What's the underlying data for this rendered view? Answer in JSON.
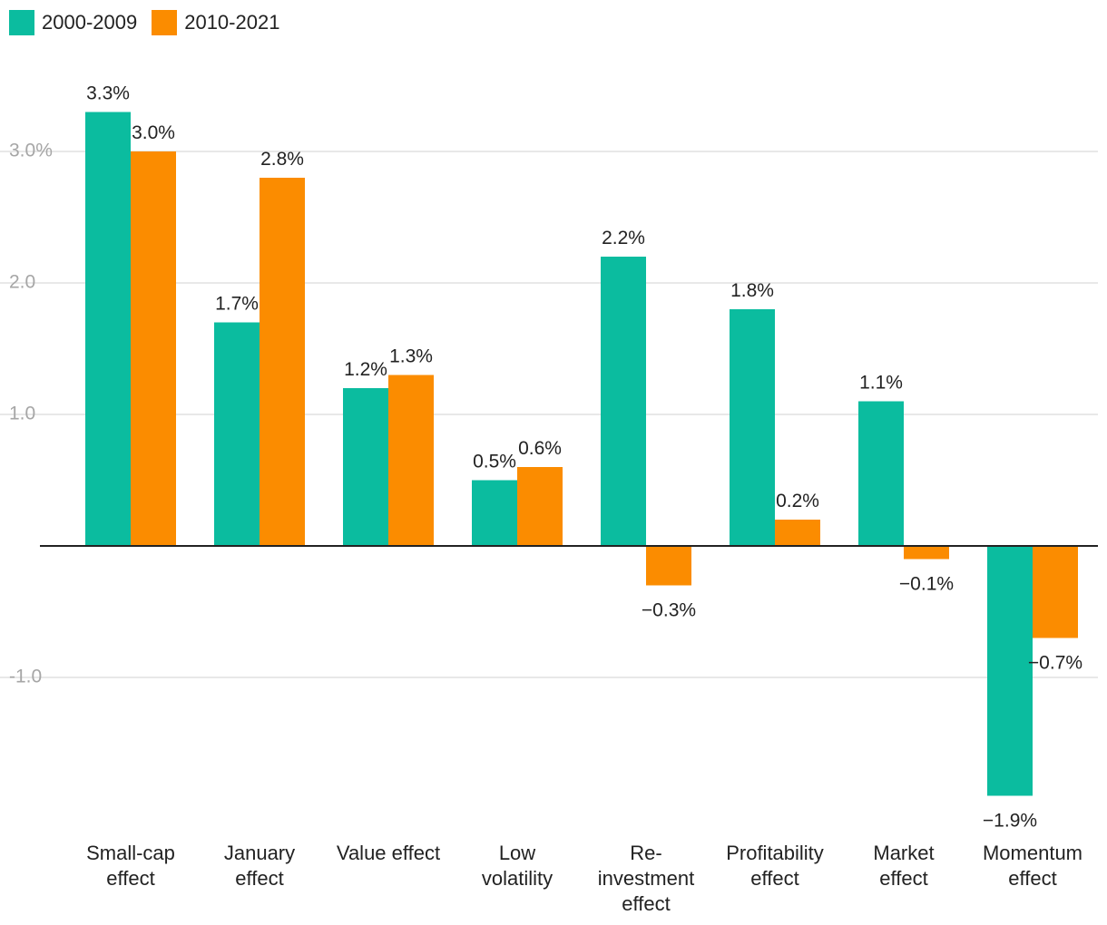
{
  "chart_data": {
    "type": "bar",
    "categories": [
      [
        "Small-cap",
        "effect"
      ],
      [
        "January",
        "effect"
      ],
      [
        "Value effect"
      ],
      [
        "Low",
        "volatility"
      ],
      [
        "Re-",
        "investment",
        "effect"
      ],
      [
        "Profitability",
        "effect"
      ],
      [
        "Market",
        "effect"
      ],
      [
        "Momentum",
        "effect"
      ]
    ],
    "series": [
      {
        "name": "2000-2009",
        "color": "#0bbc9f",
        "values": [
          3.3,
          1.7,
          1.2,
          0.5,
          2.2,
          1.8,
          1.1,
          -1.9
        ],
        "labels": [
          "3.3%",
          "1.7%",
          "1.2%",
          "0.5%",
          "2.2%",
          "1.8%",
          "1.1%",
          "−1.9%"
        ]
      },
      {
        "name": "2010-2021",
        "color": "#fb8c00",
        "values": [
          3.0,
          2.8,
          1.3,
          0.6,
          -0.3,
          0.2,
          -0.1,
          -0.7
        ],
        "labels": [
          "3.0%",
          "2.8%",
          "1.3%",
          "0.6%",
          "−0.3%",
          "0.2%",
          "−0.1%",
          "−0.7%"
        ]
      }
    ],
    "yticks": [
      {
        "value": 3.0,
        "label": "3.0%"
      },
      {
        "value": 2.0,
        "label": "2.0"
      },
      {
        "value": 1.0,
        "label": "1.0"
      },
      {
        "value": -1.0,
        "label": "-1.0"
      }
    ],
    "ylim": [
      -2.0,
      3.3
    ],
    "legend_position": "top-left",
    "grid": true
  }
}
